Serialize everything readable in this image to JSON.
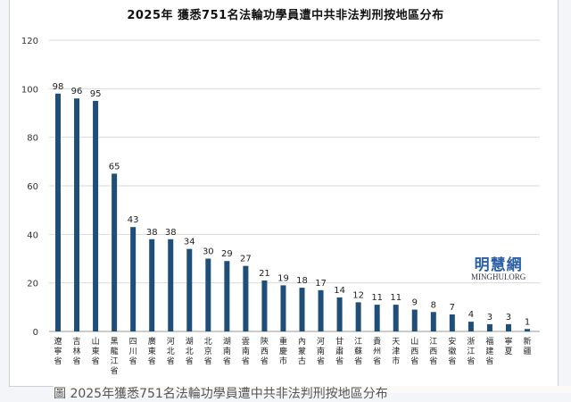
{
  "chart_data": {
    "type": "bar",
    "title": "2025年  獲悉751名法輪功學員遭中共非法判刑按地區分布",
    "categories": [
      "遼寧省",
      "吉林省",
      "山東省",
      "黑龍江省",
      "四川省",
      "廣東省",
      "河北省",
      "湖北省",
      "北京省",
      "湖南省",
      "雲南省",
      "陝西省",
      "重慶市",
      "內蒙古",
      "河南省",
      "甘肅省",
      "江蘇省",
      "貴州省",
      "天津市",
      "山西省",
      "江西省",
      "安徽省",
      "浙江省",
      "福建省",
      "寧夏",
      "新疆"
    ],
    "values": [
      98,
      96,
      95,
      65,
      43,
      38,
      38,
      34,
      30,
      29,
      27,
      21,
      19,
      18,
      17,
      14,
      12,
      11,
      11,
      9,
      8,
      7,
      4,
      3,
      3,
      1
    ],
    "ylim": [
      0,
      120
    ],
    "yticks": [
      0,
      20,
      40,
      60,
      80,
      100,
      120
    ],
    "grid": true,
    "bar_color": "#1f4e79",
    "xlabel": "",
    "ylabel": ""
  },
  "watermark": {
    "cn": "明慧網",
    "en": "MINGHUI.ORG"
  },
  "caption": "圖 2025年獲悉751名法輪功學員遭中共非法判刑按地區分布"
}
